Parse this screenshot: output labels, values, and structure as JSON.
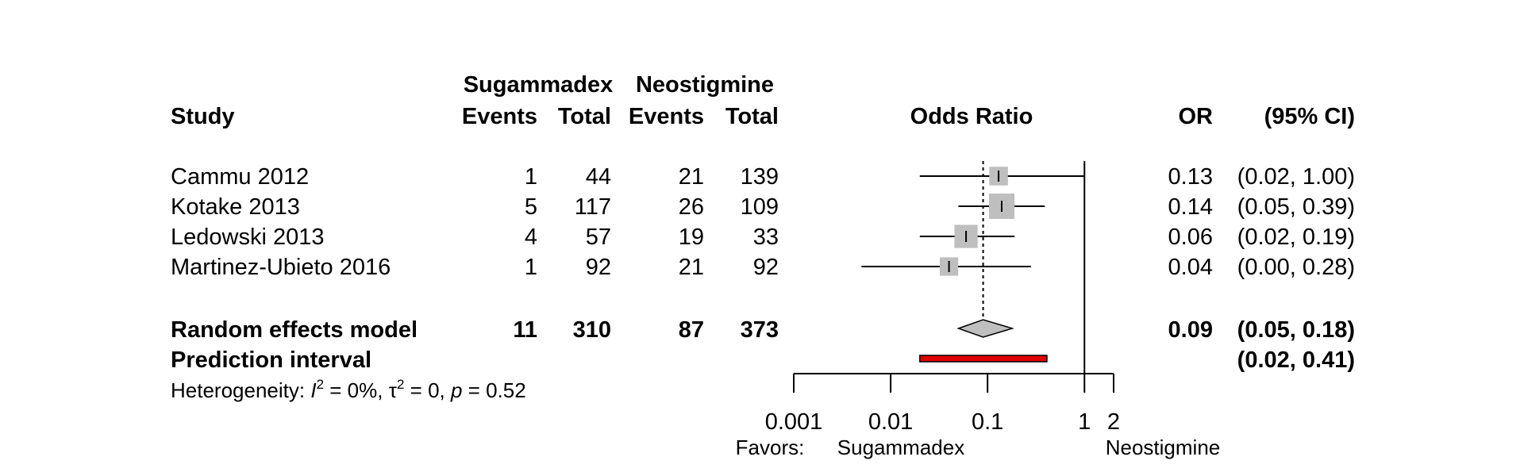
{
  "chart_data": {
    "type": "forest",
    "measure": "Odds Ratio",
    "columns": {
      "group_headers": [
        "Sugammadex",
        "Neostigmine"
      ],
      "headers": [
        "Study",
        "Events",
        "Total",
        "Events",
        "Total",
        "Odds Ratio",
        "OR",
        "(95% CI)"
      ]
    },
    "studies": [
      {
        "name": "Cammu 2012",
        "events_1": 1,
        "total_1": 44,
        "events_2": 21,
        "total_2": 139,
        "or": 0.13,
        "ci": [
          0.02,
          1.0
        ],
        "or_text": "0.13",
        "ci_text": "(0.02, 1.00)",
        "weight": 0.28
      },
      {
        "name": "Kotake 2013",
        "events_1": 5,
        "total_1": 117,
        "events_2": 26,
        "total_2": 109,
        "or": 0.14,
        "ci": [
          0.05,
          0.39
        ],
        "or_text": "0.14",
        "ci_text": "(0.05, 0.39)",
        "weight": 1.0
      },
      {
        "name": "Ledowski 2013",
        "events_1": 4,
        "total_1": 57,
        "events_2": 19,
        "total_2": 33,
        "or": 0.06,
        "ci": [
          0.02,
          0.19
        ],
        "or_text": "0.06",
        "ci_text": "(0.02, 0.19)",
        "weight": 0.72
      },
      {
        "name": "Martinez-Ubieto 2016",
        "events_1": 1,
        "total_1": 92,
        "events_2": 21,
        "total_2": 92,
        "or": 0.04,
        "ci": [
          0.0,
          0.28
        ],
        "ci_draw": [
          0.005,
          0.28
        ],
        "or_text": "0.04",
        "ci_text": "(0.00, 0.28)",
        "weight": 0.26
      }
    ],
    "summary": {
      "name": "Random effects model",
      "events_1": 11,
      "total_1": 310,
      "events_2": 87,
      "total_2": 373,
      "or": 0.09,
      "ci": [
        0.05,
        0.18
      ],
      "or_text": "0.09",
      "ci_text": "(0.05, 0.18)"
    },
    "prediction": {
      "name": "Prediction interval",
      "ci": [
        0.02,
        0.41
      ],
      "ci_text": "(0.02, 0.41)"
    },
    "heterogeneity": {
      "prefix": "Heterogeneity: ",
      "i2_sym": "I",
      "i2_val": " = 0%, ",
      "tau_sym": "τ",
      "tau_val": " = 0, ",
      "p_sym": "p",
      "p_val": " = 0.52"
    },
    "x_axis": {
      "scale": "log",
      "ticks": [
        0.001,
        0.01,
        0.1,
        1,
        2
      ],
      "tick_labels": [
        "0.001",
        "0.01",
        "0.1",
        "1",
        "2"
      ],
      "range": [
        0.001,
        2
      ],
      "null_line": 1,
      "reference_line": 0.09
    },
    "favors": {
      "label": "Favors:",
      "left": "Sugammadex",
      "right": "Neostigmine"
    },
    "colors": {
      "square": "#bfbfbf",
      "diamond": "#bfbfbf",
      "prediction": "#e00000",
      "line": "#000000"
    }
  }
}
